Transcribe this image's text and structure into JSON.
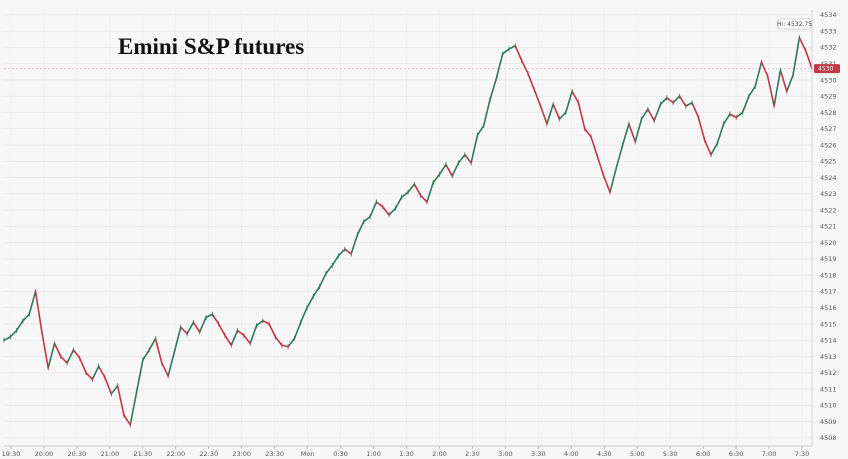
{
  "chart_data": {
    "type": "line",
    "title": "Emini S&P futures",
    "xlabel": "",
    "ylabel": "",
    "grid": true,
    "ylim": [
      4507.5,
      4534.3
    ],
    "y_ticks": [
      4508,
      4509,
      4510,
      4511,
      4512,
      4513,
      4514,
      4515,
      4516,
      4517,
      4518,
      4519,
      4520,
      4521,
      4522,
      4523,
      4524,
      4525,
      4526,
      4527,
      4528,
      4529,
      4530,
      4531,
      4532,
      4533,
      4534
    ],
    "x_ticks": [
      "19:30",
      "20:00",
      "20:30",
      "21:00",
      "21:30",
      "22:00",
      "22:30",
      "23:00",
      "23:30",
      "Mon",
      "0:30",
      "1:00",
      "1:30",
      "2:00",
      "2:30",
      "3:00",
      "3:30",
      "4:00",
      "4:30",
      "5:00",
      "5:30",
      "6:00",
      "6:30",
      "7:00",
      "7:30"
    ],
    "series": [
      {
        "values": [
          4514.0,
          4514.2,
          4514.6,
          4515.2,
          4515.6,
          4517.0,
          4514.5,
          4512.3,
          4513.8,
          4513.0,
          4512.6,
          4513.4,
          4512.9,
          4512.0,
          4511.6,
          4512.4,
          4511.7,
          4510.7,
          4511.2,
          4509.4,
          4508.8,
          4510.8,
          4512.8,
          4513.4,
          4514.1,
          4512.6,
          4511.8,
          4513.3,
          4514.8,
          4514.4,
          4515.1,
          4514.5,
          4515.4,
          4515.6,
          4515.0,
          4514.3,
          4513.7,
          4514.6,
          4514.3,
          4513.8,
          4514.9,
          4515.2,
          4515.0,
          4514.2,
          4513.7,
          4513.6,
          4514.1,
          4515.1,
          4516.0,
          4516.7,
          4517.3,
          4518.1,
          4518.6,
          4519.2,
          4519.6,
          4519.3,
          4520.5,
          4521.3,
          4521.6,
          4522.5,
          4522.2,
          4521.7,
          4522.1,
          4522.8,
          4523.1,
          4523.6,
          4522.9,
          4522.5,
          4523.7,
          4524.2,
          4524.8,
          4524.1,
          4524.9,
          4525.4,
          4524.9,
          4526.6,
          4527.2,
          4528.8,
          4530.1,
          4531.6,
          4531.9,
          4532.1,
          4531.2,
          4530.4,
          4529.4,
          4528.4,
          4527.3,
          4528.5,
          4527.6,
          4528.0,
          4529.3,
          4528.6,
          4527.0,
          4526.5,
          4525.3,
          4524.1,
          4523.1,
          4524.6,
          4526.0,
          4527.3,
          4526.2,
          4527.6,
          4528.2,
          4527.5,
          4528.5,
          4528.9,
          4528.6,
          4529.0,
          4528.4,
          4528.6,
          4527.7,
          4526.3,
          4525.4,
          4526.1,
          4527.3,
          4527.9,
          4527.7,
          4528.0,
          4529.0,
          4529.6,
          4531.1,
          4530.2,
          4528.4,
          4530.6,
          4529.3,
          4530.3,
          4532.6,
          4531.8,
          4530.7
        ]
      }
    ],
    "annotations": [
      "Hi: 4532.75",
      "4530"
    ]
  }
}
